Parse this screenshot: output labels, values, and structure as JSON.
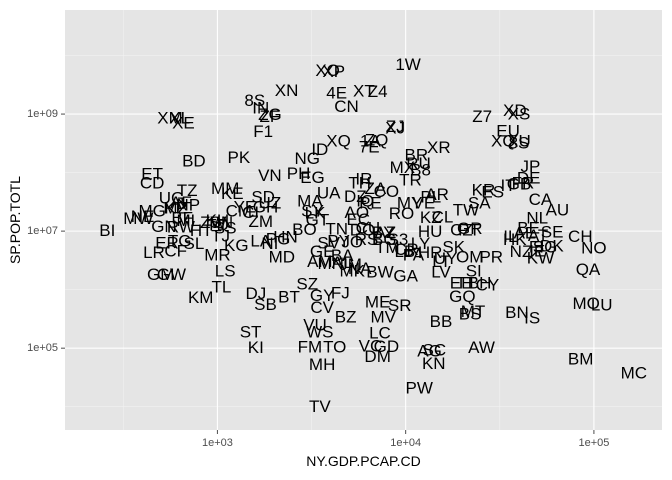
{
  "chart_data": {
    "type": "scatter",
    "xlabel": "NY.GDP.PCAP.CD",
    "ylabel": "SP.POP.TOTL",
    "x_scale": "log10",
    "y_scale": "log10",
    "xlim": [
      155,
      230000
    ],
    "ylim": [
      4000,
      60000000000
    ],
    "x_ticks": [
      {
        "value": 1000,
        "label": "1e+03"
      },
      {
        "value": 10000,
        "label": "1e+04"
      },
      {
        "value": 100000,
        "label": "1e+05"
      }
    ],
    "y_ticks": [
      {
        "value": 100000,
        "label": "1e+05"
      },
      {
        "value": 10000000,
        "label": "1e+07"
      },
      {
        "value": 1000000000,
        "label": "1e+09"
      }
    ],
    "grid": true,
    "background": "#e5e5e5",
    "grid_major_color": "#ffffff",
    "grid_minor_color": "#f2f2f2",
    "points": [
      {
        "label": "1W",
        "x": 10300,
        "y": 7020000000
      },
      {
        "label": "XO",
        "x": 3850,
        "y": 5500000000
      },
      {
        "label": "XP",
        "x": 4150,
        "y": 5300000000
      },
      {
        "label": "XT",
        "x": 6000,
        "y": 2500000000
      },
      {
        "label": "Z4",
        "x": 7100,
        "y": 2450000000
      },
      {
        "label": "4E",
        "x": 4300,
        "y": 2300000000
      },
      {
        "label": "XN",
        "x": 2330,
        "y": 2550000000
      },
      {
        "label": "8S",
        "x": 1580,
        "y": 1700000000
      },
      {
        "label": "CN",
        "x": 4850,
        "y": 1360000000
      },
      {
        "label": "IN",
        "x": 1700,
        "y": 1270000000
      },
      {
        "label": "ZG",
        "x": 1900,
        "y": 980000000
      },
      {
        "label": "ZF",
        "x": 1900,
        "y": 900000000
      },
      {
        "label": "XM",
        "x": 560,
        "y": 850000000
      },
      {
        "label": "XL",
        "x": 630,
        "y": 850000000
      },
      {
        "label": "XE",
        "x": 660,
        "y": 710000000
      },
      {
        "label": "Z7",
        "x": 25500,
        "y": 900000000
      },
      {
        "label": "XD",
        "x": 38000,
        "y": 1150000000
      },
      {
        "label": "XS",
        "x": 40000,
        "y": 1000000000
      },
      {
        "label": "EU",
        "x": 35000,
        "y": 510000000
      },
      {
        "label": "ZJ",
        "x": 8800,
        "y": 610000000
      },
      {
        "label": "XJ",
        "x": 8800,
        "y": 580000000
      },
      {
        "label": "F1",
        "x": 1750,
        "y": 500000000
      },
      {
        "label": "XU",
        "x": 40000,
        "y": 350000000
      },
      {
        "label": "XQ",
        "x": 33000,
        "y": 350000000
      },
      {
        "label": "8S",
        "x": 40000,
        "y": 320000000
      },
      {
        "label": "XQ",
        "x": 4400,
        "y": 350000000
      },
      {
        "label": "1A",
        "x": 6500,
        "y": 350000000
      },
      {
        "label": "ZQ",
        "x": 7000,
        "y": 360000000
      },
      {
        "label": "7E",
        "x": 6400,
        "y": 275000000
      },
      {
        "label": "ID",
        "x": 3500,
        "y": 250000000
      },
      {
        "label": "XR",
        "x": 15000,
        "y": 270000000
      },
      {
        "label": "BR",
        "x": 11400,
        "y": 200000000
      },
      {
        "label": "PK",
        "x": 1300,
        "y": 182000000
      },
      {
        "label": "BD",
        "x": 750,
        "y": 157000000
      },
      {
        "label": "NG",
        "x": 3000,
        "y": 173000000
      },
      {
        "label": "MX",
        "x": 9600,
        "y": 123000000
      },
      {
        "label": "JP",
        "x": 46000,
        "y": 127000000
      },
      {
        "label": "RU",
        "x": 11700,
        "y": 143000000
      },
      {
        "label": "B8",
        "x": 12000,
        "y": 110000000
      },
      {
        "label": "PH",
        "x": 2700,
        "y": 97000000
      },
      {
        "label": "ET",
        "x": 450,
        "y": 94000000
      },
      {
        "label": "VN",
        "x": 1900,
        "y": 90000000
      },
      {
        "label": "DE",
        "x": 45000,
        "y": 81000000
      },
      {
        "label": "EG",
        "x": 3200,
        "y": 82000000
      },
      {
        "label": "TR",
        "x": 10600,
        "y": 75000000
      },
      {
        "label": "FR",
        "x": 42000,
        "y": 66000000
      },
      {
        "label": "GB",
        "x": 40000,
        "y": 64000000
      },
      {
        "label": "IR",
        "x": 6000,
        "y": 77000000
      },
      {
        "label": "TH",
        "x": 5700,
        "y": 67000000
      },
      {
        "label": "CD",
        "x": 450,
        "y": 67000000
      },
      {
        "label": "IT",
        "x": 35000,
        "y": 60000000
      },
      {
        "label": "ZA",
        "x": 6900,
        "y": 53000000
      },
      {
        "label": "MM",
        "x": 1100,
        "y": 53000000
      },
      {
        "label": "TZ",
        "x": 690,
        "y": 49000000
      },
      {
        "label": "KE",
        "x": 1200,
        "y": 44000000
      },
      {
        "label": "KR",
        "x": 25900,
        "y": 50000000
      },
      {
        "label": "ES",
        "x": 29000,
        "y": 47000000
      },
      {
        "label": "CO",
        "x": 7900,
        "y": 48000000
      },
      {
        "label": "UA",
        "x": 3900,
        "y": 45000000
      },
      {
        "label": "AR",
        "x": 14700,
        "y": 42000000
      },
      {
        "label": "DZ",
        "x": 5400,
        "y": 39000000
      },
      {
        "label": "SD",
        "x": 1750,
        "y": 38000000
      },
      {
        "label": "UG",
        "x": 570,
        "y": 37000000
      },
      {
        "label": "CA",
        "x": 52000,
        "y": 35000000
      },
      {
        "label": "PL",
        "x": 13600,
        "y": 38000000
      },
      {
        "label": "MA",
        "x": 3100,
        "y": 33000000
      },
      {
        "label": "IQ",
        "x": 6100,
        "y": 33000000
      },
      {
        "label": "AF",
        "x": 640,
        "y": 31000000
      },
      {
        "label": "PE",
        "x": 6500,
        "y": 30000000
      },
      {
        "label": "MY",
        "x": 10500,
        "y": 30000000
      },
      {
        "label": "SA",
        "x": 24600,
        "y": 30000000
      },
      {
        "label": "VE",
        "x": 12500,
        "y": 30000000
      },
      {
        "label": "UZ",
        "x": 1900,
        "y": 30000000
      },
      {
        "label": "NP",
        "x": 700,
        "y": 28000000
      },
      {
        "label": "YE",
        "x": 1400,
        "y": 26000000
      },
      {
        "label": "GH",
        "x": 1800,
        "y": 26000000
      },
      {
        "label": "MZ",
        "x": 600,
        "y": 25000000
      },
      {
        "label": "KP",
        "x": 600,
        "y": 24700000
      },
      {
        "label": "AU",
        "x": 64000,
        "y": 23000000
      },
      {
        "label": "MG",
        "x": 450,
        "y": 22000000
      },
      {
        "label": "CM",
        "x": 1300,
        "y": 22000000
      },
      {
        "label": "CI",
        "x": 1500,
        "y": 21000000
      },
      {
        "label": "LK",
        "x": 3300,
        "y": 20500000
      },
      {
        "label": "RO",
        "x": 9500,
        "y": 19900000
      },
      {
        "label": "SY",
        "x": 3200,
        "y": 22000000
      },
      {
        "label": "AO",
        "x": 5500,
        "y": 21000000
      },
      {
        "label": "TW",
        "x": 20900,
        "y": 23000000
      },
      {
        "label": "NE",
        "x": 400,
        "y": 17800000
      },
      {
        "label": "CL",
        "x": 15700,
        "y": 17600000
      },
      {
        "label": "KZ",
        "x": 13600,
        "y": 17000000
      },
      {
        "label": "NL",
        "x": 50000,
        "y": 16800000
      },
      {
        "label": "BF",
        "x": 650,
        "y": 16900000
      },
      {
        "label": "MW",
        "x": 380,
        "y": 16400000
      },
      {
        "label": "ML",
        "x": 700,
        "y": 15300000
      },
      {
        "label": "GT",
        "x": 3400,
        "y": 15500000
      },
      {
        "label": "EC",
        "x": 5600,
        "y": 15700000
      },
      {
        "label": "ZM",
        "x": 1700,
        "y": 14500000
      },
      {
        "label": "KH",
        "x": 1000,
        "y": 15100000
      },
      {
        "label": "SN",
        "x": 1050,
        "y": 14100000
      },
      {
        "label": "TD",
        "x": 1000,
        "y": 12800000
      },
      {
        "label": "ZW",
        "x": 950,
        "y": 14100000
      },
      {
        "label": "GN",
        "x": 520,
        "y": 12000000
      },
      {
        "label": "SS",
        "x": 1100,
        "y": 11300000
      },
      {
        "label": "RW",
        "x": 640,
        "y": 11800000
      },
      {
        "label": "CU",
        "x": 6300,
        "y": 11300000
      },
      {
        "label": "BE",
        "x": 45000,
        "y": 11200000
      },
      {
        "label": "GR",
        "x": 21900,
        "y": 11000000
      },
      {
        "label": "BO",
        "x": 2900,
        "y": 10700000
      },
      {
        "label": "TN",
        "x": 4300,
        "y": 10900000
      },
      {
        "label": "CZ",
        "x": 19800,
        "y": 10500000
      },
      {
        "label": "PT",
        "x": 21700,
        "y": 10400000
      },
      {
        "label": "HT",
        "x": 820,
        "y": 10300000
      },
      {
        "label": "DO",
        "x": 5900,
        "y": 10400000
      },
      {
        "label": "HU",
        "x": 13500,
        "y": 9900000
      },
      {
        "label": "SE",
        "x": 60000,
        "y": 9600000
      },
      {
        "label": "BI",
        "x": 260,
        "y": 10200000
      },
      {
        "label": "AZ",
        "x": 7800,
        "y": 9400000
      },
      {
        "label": "BY",
        "x": 7600,
        "y": 9500000
      },
      {
        "label": "AE",
        "x": 43000,
        "y": 9300000
      },
      {
        "label": "JO",
        "x": 5200,
        "y": 6500000
      },
      {
        "label": "AT",
        "x": 50500,
        "y": 8500000
      },
      {
        "label": "IL",
        "x": 36000,
        "y": 8100000
      },
      {
        "label": "CH",
        "x": 84700,
        "y": 8100000
      },
      {
        "label": "HN",
        "x": 2300,
        "y": 8000000
      },
      {
        "label": "TJ",
        "x": 1040,
        "y": 8200000
      },
      {
        "label": "RS",
        "x": 6200,
        "y": 7200000
      },
      {
        "label": "PG",
        "x": 2100,
        "y": 7300000
      },
      {
        "label": "BG",
        "x": 7700,
        "y": 7200000
      },
      {
        "label": "HK",
        "x": 38000,
        "y": 7200000
      },
      {
        "label": "LY",
        "x": 12000,
        "y": 6200000
      },
      {
        "label": "PY",
        "x": 4400,
        "y": 6800000
      },
      {
        "label": "LA",
        "x": 1700,
        "y": 6800000
      },
      {
        "label": "S3",
        "x": 9100,
        "y": 7200000
      },
      {
        "label": "SV",
        "x": 3900,
        "y": 6300000
      },
      {
        "label": "NI",
        "x": 1900,
        "y": 6100000
      },
      {
        "label": "SL",
        "x": 750,
        "y": 6100000
      },
      {
        "label": "DK",
        "x": 59800,
        "y": 5600000
      },
      {
        "label": "FI",
        "x": 49500,
        "y": 5400000
      },
      {
        "label": "SK",
        "x": 18000,
        "y": 5400000
      },
      {
        "label": "KG",
        "x": 1260,
        "y": 5700000
      },
      {
        "label": "TG",
        "x": 630,
        "y": 6800000
      },
      {
        "label": "ER",
        "x": 540,
        "y": 6300000
      },
      {
        "label": "SG",
        "x": 55000,
        "y": 5400000
      },
      {
        "label": "NO",
        "x": 100000,
        "y": 5100000
      },
      {
        "label": "TM",
        "x": 8000,
        "y": 5200000
      },
      {
        "label": "CF",
        "x": 600,
        "y": 4600000
      },
      {
        "label": "IE",
        "x": 50000,
        "y": 4600000
      },
      {
        "label": "CR",
        "x": 10100,
        "y": 4900000
      },
      {
        "label": "GE",
        "x": 3600,
        "y": 4500000
      },
      {
        "label": "LB",
        "x": 9900,
        "y": 4500000
      },
      {
        "label": "HR",
        "x": 13500,
        "y": 4300000
      },
      {
        "label": "LR",
        "x": 460,
        "y": 4300000
      },
      {
        "label": "NZ",
        "x": 41000,
        "y": 4500000
      },
      {
        "label": "PR",
        "x": 28500,
        "y": 3600000
      },
      {
        "label": "MD",
        "x": 2200,
        "y": 3600000
      },
      {
        "label": "PA",
        "x": 11000,
        "y": 3900000
      },
      {
        "label": "BA",
        "x": 4600,
        "y": 3800000
      },
      {
        "label": "MR",
        "x": 1000,
        "y": 3900000
      },
      {
        "label": "KW",
        "x": 52000,
        "y": 3500000
      },
      {
        "label": "UY",
        "x": 16300,
        "y": 3400000
      },
      {
        "label": "OM",
        "x": 21900,
        "y": 3600000
      },
      {
        "label": "AM",
        "x": 3500,
        "y": 3000000
      },
      {
        "label": "MN",
        "x": 4000,
        "y": 2800000
      },
      {
        "label": "AL",
        "x": 4600,
        "y": 2900000
      },
      {
        "label": "LT",
        "x": 15500,
        "y": 3000000
      },
      {
        "label": "JM",
        "x": 5100,
        "y": 2700000
      },
      {
        "label": "LS",
        "x": 1100,
        "y": 2100000
      },
      {
        "label": "NA",
        "x": 5700,
        "y": 2300000
      },
      {
        "label": "QA",
        "x": 93000,
        "y": 2200000
      },
      {
        "label": "BW",
        "x": 7300,
        "y": 2000000
      },
      {
        "label": "GM",
        "x": 500,
        "y": 1800000
      },
      {
        "label": "GW",
        "x": 570,
        "y": 1800000
      },
      {
        "label": "SI",
        "x": 23000,
        "y": 2100000
      },
      {
        "label": "GA",
        "x": 10000,
        "y": 1700000
      },
      {
        "label": "LV",
        "x": 15400,
        "y": 2000000
      },
      {
        "label": "MK",
        "x": 5200,
        "y": 2100000
      },
      {
        "label": "SZ",
        "x": 3000,
        "y": 1250000
      },
      {
        "label": "TL",
        "x": 1050,
        "y": 1100000
      },
      {
        "label": "EE",
        "x": 19700,
        "y": 1300000
      },
      {
        "label": "BH",
        "x": 24700,
        "y": 1300000
      },
      {
        "label": "CY",
        "x": 27200,
        "y": 1200000
      },
      {
        "label": "TT",
        "x": 21000,
        "y": 1300000
      },
      {
        "label": "GQ",
        "x": 20000,
        "y": 760000
      },
      {
        "label": "KM",
        "x": 815,
        "y": 740000
      },
      {
        "label": "DJ",
        "x": 1600,
        "y": 860000
      },
      {
        "label": "BT",
        "x": 2400,
        "y": 750000
      },
      {
        "label": "GY",
        "x": 3600,
        "y": 800000
      },
      {
        "label": "FJ",
        "x": 4500,
        "y": 880000
      },
      {
        "label": "CV",
        "x": 3600,
        "y": 500000
      },
      {
        "label": "ME",
        "x": 7100,
        "y": 620000
      },
      {
        "label": "SR",
        "x": 9300,
        "y": 540000
      },
      {
        "label": "SB",
        "x": 1800,
        "y": 560000
      },
      {
        "label": "LU",
        "x": 110000,
        "y": 550000
      },
      {
        "label": "MO",
        "x": 91000,
        "y": 580000
      },
      {
        "label": "MT",
        "x": 22800,
        "y": 420000
      },
      {
        "label": "BS",
        "x": 22000,
        "y": 380000
      },
      {
        "label": "BN",
        "x": 39000,
        "y": 410000
      },
      {
        "label": "IS",
        "x": 47000,
        "y": 330000
      },
      {
        "label": "MV",
        "x": 7600,
        "y": 340000
      },
      {
        "label": "BZ",
        "x": 4800,
        "y": 340000
      },
      {
        "label": "BB",
        "x": 15400,
        "y": 285000
      },
      {
        "label": "VU",
        "x": 3300,
        "y": 250000
      },
      {
        "label": "WS",
        "x": 3500,
        "y": 190000
      },
      {
        "label": "LC",
        "x": 7300,
        "y": 180000
      },
      {
        "label": "ST",
        "x": 1500,
        "y": 190000
      },
      {
        "label": "VC",
        "x": 6500,
        "y": 109000
      },
      {
        "label": "GD",
        "x": 7900,
        "y": 106000
      },
      {
        "label": "FM",
        "x": 3100,
        "y": 104000
      },
      {
        "label": "TO",
        "x": 4200,
        "y": 105000
      },
      {
        "label": "KI",
        "x": 1600,
        "y": 102000
      },
      {
        "label": "AW",
        "x": 25300,
        "y": 103000
      },
      {
        "label": "DM",
        "x": 7100,
        "y": 72000
      },
      {
        "label": "SC",
        "x": 14200,
        "y": 93000
      },
      {
        "label": "AG",
        "x": 13400,
        "y": 90000
      },
      {
        "label": "KN",
        "x": 14100,
        "y": 55000
      },
      {
        "label": "MH",
        "x": 3600,
        "y": 53000
      },
      {
        "label": "BM",
        "x": 85000,
        "y": 65000
      },
      {
        "label": "MC",
        "x": 163000,
        "y": 38000
      },
      {
        "label": "PW",
        "x": 11800,
        "y": 21000
      },
      {
        "label": "TV",
        "x": 3500,
        "y": 10000
      }
    ]
  }
}
